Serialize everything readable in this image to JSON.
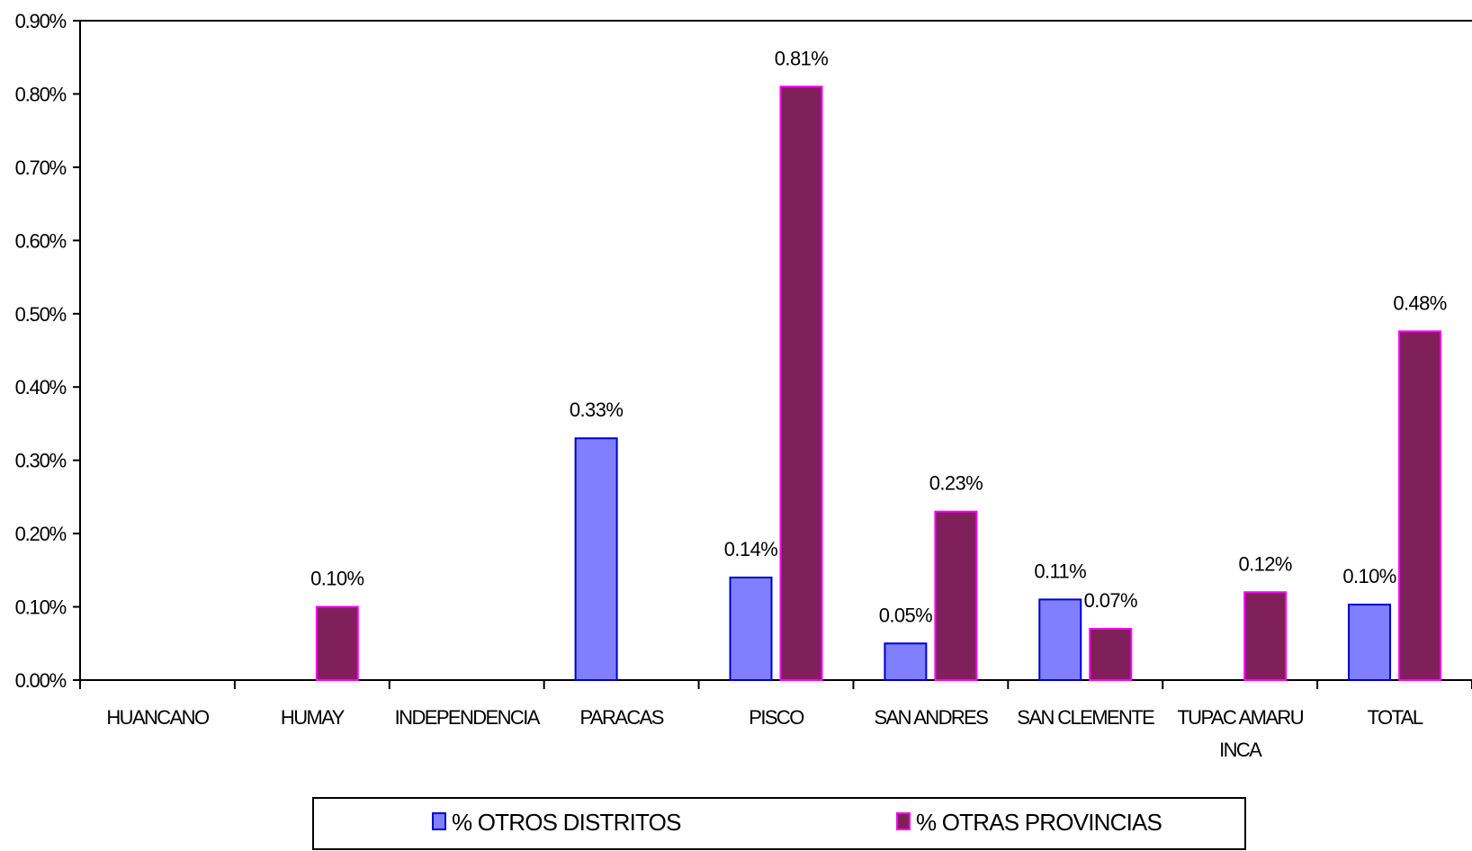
{
  "chart_data": {
    "type": "bar",
    "categories": [
      [
        "HUANCANO"
      ],
      [
        "HUMAY"
      ],
      [
        "INDEPENDENCIA"
      ],
      [
        "PARACAS"
      ],
      [
        "PISCO"
      ],
      [
        "SAN ANDRES"
      ],
      [
        "SAN CLEMENTE"
      ],
      [
        "TUPAC AMARU",
        "INCA"
      ],
      [
        "TOTAL"
      ]
    ],
    "series": [
      {
        "name": "%  OTROS DISTRITOS",
        "color": "#8080ff",
        "border": "#0000cc",
        "values": [
          null,
          null,
          null,
          0.33,
          0.14,
          0.05,
          0.11,
          null,
          0.103
        ],
        "labels": [
          "",
          "",
          "",
          "0.33%",
          "0.14%",
          "0.05%",
          "0.11%",
          "",
          "0.10%"
        ]
      },
      {
        "name": "% OTRAS PROVINCIAS",
        "color": "#80205a",
        "border": "#ff00ff",
        "values": [
          null,
          0.1,
          null,
          null,
          0.81,
          0.23,
          0.07,
          0.12,
          0.476
        ],
        "labels": [
          "",
          "0.10%",
          "",
          "",
          "0.81%",
          "0.23%",
          "0.07%",
          "0.12%",
          "0.48%"
        ]
      }
    ],
    "ylim": [
      0,
      0.9
    ],
    "yticks": [
      "0.00%",
      "0.10%",
      "0.20%",
      "0.30%",
      "0.40%",
      "0.50%",
      "0.60%",
      "0.70%",
      "0.80%",
      "0.90%"
    ],
    "grid": false,
    "legend": "bottom",
    "title": "",
    "xlabel": "",
    "ylabel": ""
  }
}
